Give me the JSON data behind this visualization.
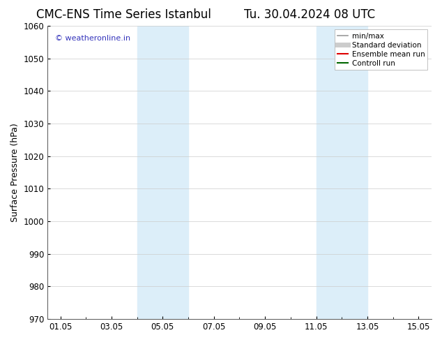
{
  "title_left": "CMC-ENS Time Series Istanbul",
  "title_right": "Tu. 30.04.2024 08 UTC",
  "ylabel": "Surface Pressure (hPa)",
  "ylim": [
    970,
    1060
  ],
  "yticks": [
    970,
    980,
    990,
    1000,
    1010,
    1020,
    1030,
    1040,
    1050,
    1060
  ],
  "xtick_labels": [
    "01.05",
    "03.05",
    "05.05",
    "07.05",
    "09.05",
    "11.05",
    "13.05",
    "15.05"
  ],
  "xtick_positions": [
    1,
    3,
    5,
    7,
    9,
    11,
    13,
    15
  ],
  "xlim": [
    0.5,
    15.5
  ],
  "shaded_bands": [
    {
      "x_start": 4.0,
      "x_end": 6.0
    },
    {
      "x_start": 11.0,
      "x_end": 13.0
    }
  ],
  "shaded_color": "#dceef9",
  "watermark_text": "© weatheronline.in",
  "watermark_color": "#3333bb",
  "legend_items": [
    {
      "label": "min/max",
      "color": "#999999",
      "lw": 1.2,
      "style": "solid"
    },
    {
      "label": "Standard deviation",
      "color": "#cccccc",
      "lw": 5,
      "style": "solid"
    },
    {
      "label": "Ensemble mean run",
      "color": "#dd0000",
      "lw": 1.5,
      "style": "solid"
    },
    {
      "label": "Controll run",
      "color": "#006600",
      "lw": 1.5,
      "style": "solid"
    }
  ],
  "background_color": "#ffffff",
  "grid_color": "#cccccc",
  "title_fontsize": 12,
  "label_fontsize": 9,
  "tick_fontsize": 8.5
}
